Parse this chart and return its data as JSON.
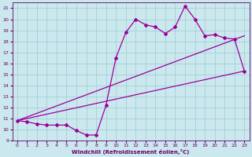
{
  "bg_color": "#cce8ef",
  "line_color": "#990099",
  "grid_color": "#99cccc",
  "xlabel": "Windchill (Refroidissement éolien,°C)",
  "xlabel_color": "#660066",
  "tick_color": "#660066",
  "xlim": [
    -0.5,
    23.5
  ],
  "ylim": [
    9,
    21.5
  ],
  "yticks": [
    9,
    10,
    11,
    12,
    13,
    14,
    15,
    16,
    17,
    18,
    19,
    20,
    21
  ],
  "xticks": [
    0,
    1,
    2,
    3,
    4,
    5,
    6,
    7,
    8,
    9,
    10,
    11,
    12,
    13,
    14,
    15,
    16,
    17,
    18,
    19,
    20,
    21,
    22,
    23
  ],
  "main_x": [
    0,
    1,
    2,
    3,
    4,
    5,
    6,
    7,
    8,
    9,
    10,
    11,
    12,
    13,
    14,
    15,
    16,
    17,
    18,
    19,
    20,
    21,
    22,
    23
  ],
  "main_y": [
    10.8,
    10.7,
    10.5,
    10.4,
    10.4,
    10.4,
    9.9,
    9.5,
    9.5,
    12.2,
    16.5,
    18.8,
    20.0,
    19.5,
    19.3,
    18.7,
    19.3,
    21.2,
    20.0,
    18.5,
    18.6,
    18.3,
    18.2,
    15.3
  ],
  "low_line_x": [
    0,
    23
  ],
  "low_line_y": [
    10.8,
    15.3
  ],
  "high_line_x": [
    0,
    23
  ],
  "high_line_y": [
    10.8,
    18.5
  ],
  "marker": "D",
  "markersize": 2.0,
  "linewidth": 0.9
}
